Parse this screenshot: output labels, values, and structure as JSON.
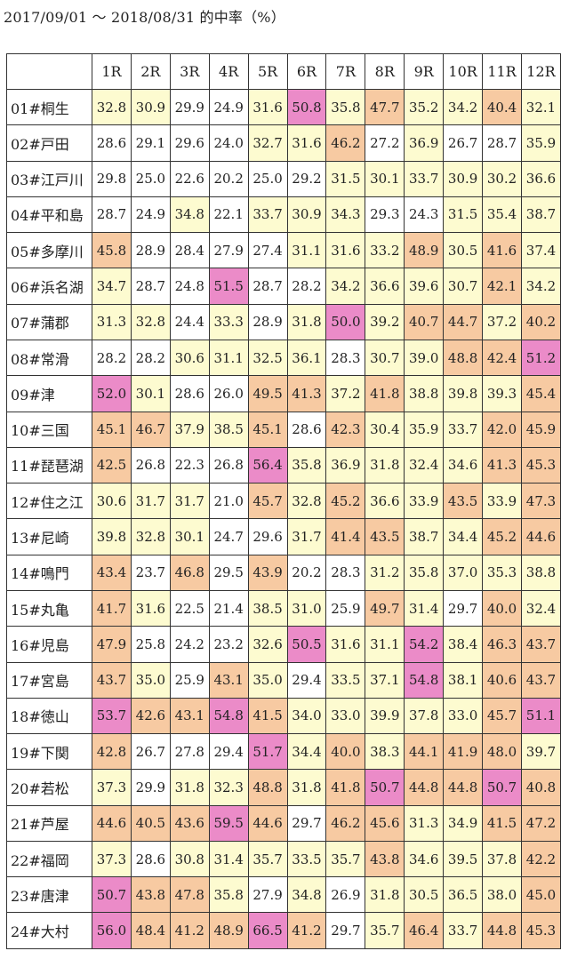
{
  "title": "2017/09/01 〜 2018/08/31 的中率（%）",
  "colors": {
    "white": "#ffffff",
    "yellow": "#fdfbd0",
    "orange": "#f7caa2",
    "pink": "#eb8bc8"
  },
  "headers": [
    "",
    "1R",
    "2R",
    "3R",
    "4R",
    "5R",
    "6R",
    "7R",
    "8R",
    "9R",
    "10R",
    "11R",
    "12R"
  ],
  "rows": [
    {
      "venue": "01#桐生",
      "values": [
        "32.8",
        "30.9",
        "29.9",
        "24.9",
        "31.6",
        "50.8",
        "35.8",
        "47.7",
        "35.2",
        "34.2",
        "40.4",
        "32.1"
      ],
      "shades": [
        "y",
        "y",
        "w",
        "w",
        "y",
        "p",
        "y",
        "o",
        "y",
        "y",
        "o",
        "y"
      ]
    },
    {
      "venue": "02#戸田",
      "values": [
        "28.6",
        "29.1",
        "29.6",
        "24.0",
        "32.7",
        "31.6",
        "46.2",
        "27.2",
        "36.9",
        "26.7",
        "28.7",
        "35.9"
      ],
      "shades": [
        "w",
        "w",
        "w",
        "w",
        "y",
        "y",
        "o",
        "w",
        "y",
        "w",
        "w",
        "y"
      ]
    },
    {
      "venue": "03#江戸川",
      "values": [
        "29.8",
        "25.0",
        "22.6",
        "20.2",
        "25.0",
        "29.2",
        "31.5",
        "30.1",
        "33.7",
        "30.9",
        "30.2",
        "36.6"
      ],
      "shades": [
        "w",
        "w",
        "w",
        "w",
        "w",
        "w",
        "y",
        "y",
        "y",
        "y",
        "y",
        "y"
      ]
    },
    {
      "venue": "04#平和島",
      "values": [
        "28.7",
        "24.9",
        "34.8",
        "22.1",
        "33.7",
        "30.9",
        "34.3",
        "29.3",
        "24.3",
        "31.5",
        "35.4",
        "38.7"
      ],
      "shades": [
        "w",
        "w",
        "y",
        "w",
        "y",
        "y",
        "y",
        "w",
        "w",
        "y",
        "y",
        "y"
      ]
    },
    {
      "venue": "05#多摩川",
      "values": [
        "45.8",
        "28.9",
        "28.4",
        "27.9",
        "27.4",
        "31.1",
        "31.6",
        "33.2",
        "48.9",
        "30.5",
        "41.6",
        "37.4"
      ],
      "shades": [
        "o",
        "w",
        "w",
        "w",
        "w",
        "y",
        "y",
        "y",
        "o",
        "y",
        "o",
        "y"
      ]
    },
    {
      "venue": "06#浜名湖",
      "values": [
        "34.7",
        "28.7",
        "24.8",
        "51.5",
        "28.7",
        "28.2",
        "34.2",
        "36.6",
        "39.6",
        "30.7",
        "42.1",
        "34.2"
      ],
      "shades": [
        "y",
        "w",
        "w",
        "p",
        "w",
        "w",
        "y",
        "y",
        "y",
        "y",
        "o",
        "y"
      ]
    },
    {
      "venue": "07#蒲郡",
      "values": [
        "31.3",
        "32.8",
        "24.4",
        "33.3",
        "28.9",
        "31.8",
        "50.0",
        "39.2",
        "40.7",
        "44.7",
        "37.2",
        "40.2"
      ],
      "shades": [
        "y",
        "y",
        "w",
        "y",
        "w",
        "y",
        "p",
        "y",
        "o",
        "o",
        "y",
        "o"
      ]
    },
    {
      "venue": "08#常滑",
      "values": [
        "28.2",
        "28.2",
        "30.6",
        "31.1",
        "32.5",
        "36.1",
        "28.3",
        "30.7",
        "39.0",
        "48.8",
        "42.4",
        "51.2"
      ],
      "shades": [
        "w",
        "w",
        "y",
        "y",
        "y",
        "y",
        "w",
        "y",
        "y",
        "o",
        "o",
        "p"
      ]
    },
    {
      "venue": "09#津",
      "values": [
        "52.0",
        "30.1",
        "28.6",
        "26.0",
        "49.5",
        "41.3",
        "37.2",
        "41.8",
        "38.8",
        "39.8",
        "39.3",
        "45.4"
      ],
      "shades": [
        "p",
        "y",
        "w",
        "w",
        "o",
        "o",
        "y",
        "o",
        "y",
        "y",
        "y",
        "o"
      ]
    },
    {
      "venue": "10#三国",
      "values": [
        "45.1",
        "46.7",
        "37.9",
        "38.5",
        "45.1",
        "28.6",
        "42.3",
        "30.4",
        "35.9",
        "33.7",
        "42.0",
        "45.9"
      ],
      "shades": [
        "o",
        "o",
        "y",
        "y",
        "o",
        "w",
        "o",
        "y",
        "y",
        "y",
        "o",
        "o"
      ]
    },
    {
      "venue": "11#琵琶湖",
      "values": [
        "42.5",
        "26.8",
        "22.3",
        "26.8",
        "56.4",
        "35.8",
        "36.9",
        "31.8",
        "32.4",
        "34.6",
        "41.3",
        "45.3"
      ],
      "shades": [
        "o",
        "w",
        "w",
        "w",
        "p",
        "y",
        "y",
        "y",
        "y",
        "y",
        "o",
        "o"
      ]
    },
    {
      "venue": "12#住之江",
      "values": [
        "30.6",
        "31.7",
        "31.7",
        "21.0",
        "45.7",
        "32.8",
        "45.2",
        "36.6",
        "33.9",
        "43.5",
        "33.9",
        "47.3"
      ],
      "shades": [
        "y",
        "y",
        "y",
        "w",
        "o",
        "y",
        "o",
        "y",
        "y",
        "o",
        "y",
        "o"
      ]
    },
    {
      "venue": "13#尼崎",
      "values": [
        "39.8",
        "32.8",
        "30.1",
        "24.7",
        "29.6",
        "31.7",
        "41.4",
        "43.5",
        "38.7",
        "34.4",
        "45.2",
        "44.6"
      ],
      "shades": [
        "y",
        "y",
        "y",
        "w",
        "w",
        "y",
        "o",
        "o",
        "y",
        "y",
        "o",
        "o"
      ]
    },
    {
      "venue": "14#鳴門",
      "values": [
        "43.4",
        "23.7",
        "46.8",
        "29.5",
        "43.9",
        "20.2",
        "28.3",
        "31.2",
        "35.8",
        "37.0",
        "35.3",
        "38.8"
      ],
      "shades": [
        "o",
        "w",
        "o",
        "w",
        "o",
        "w",
        "w",
        "y",
        "y",
        "y",
        "y",
        "y"
      ]
    },
    {
      "venue": "15#丸亀",
      "values": [
        "41.7",
        "31.6",
        "22.5",
        "21.4",
        "38.5",
        "31.0",
        "25.9",
        "49.7",
        "31.4",
        "29.7",
        "40.0",
        "32.4"
      ],
      "shades": [
        "o",
        "y",
        "w",
        "w",
        "y",
        "y",
        "w",
        "o",
        "y",
        "w",
        "o",
        "y"
      ]
    },
    {
      "venue": "16#児島",
      "values": [
        "47.9",
        "25.8",
        "24.2",
        "23.2",
        "32.6",
        "50.5",
        "31.6",
        "31.1",
        "54.2",
        "38.4",
        "46.3",
        "43.7"
      ],
      "shades": [
        "o",
        "w",
        "w",
        "w",
        "y",
        "p",
        "y",
        "y",
        "p",
        "y",
        "o",
        "o"
      ]
    },
    {
      "venue": "17#宮島",
      "values": [
        "43.7",
        "35.0",
        "25.9",
        "43.1",
        "35.0",
        "29.4",
        "33.5",
        "37.1",
        "54.8",
        "38.1",
        "40.6",
        "43.7"
      ],
      "shades": [
        "o",
        "y",
        "w",
        "o",
        "y",
        "w",
        "y",
        "y",
        "p",
        "y",
        "o",
        "o"
      ]
    },
    {
      "venue": "18#徳山",
      "values": [
        "53.7",
        "42.6",
        "43.1",
        "54.8",
        "41.5",
        "34.0",
        "33.0",
        "39.9",
        "37.8",
        "33.0",
        "45.7",
        "51.1"
      ],
      "shades": [
        "p",
        "o",
        "o",
        "p",
        "o",
        "y",
        "y",
        "y",
        "y",
        "y",
        "o",
        "p"
      ]
    },
    {
      "venue": "19#下関",
      "values": [
        "42.8",
        "26.7",
        "27.8",
        "29.4",
        "51.7",
        "34.4",
        "40.0",
        "38.3",
        "44.1",
        "41.9",
        "48.0",
        "39.7"
      ],
      "shades": [
        "o",
        "w",
        "w",
        "w",
        "p",
        "y",
        "o",
        "y",
        "o",
        "o",
        "o",
        "y"
      ]
    },
    {
      "venue": "20#若松",
      "values": [
        "37.3",
        "29.9",
        "31.8",
        "32.3",
        "48.8",
        "31.8",
        "41.8",
        "50.7",
        "44.8",
        "44.8",
        "50.7",
        "40.8"
      ],
      "shades": [
        "y",
        "w",
        "y",
        "y",
        "o",
        "y",
        "o",
        "p",
        "o",
        "o",
        "p",
        "o"
      ]
    },
    {
      "venue": "21#芦屋",
      "values": [
        "44.6",
        "40.5",
        "43.6",
        "59.5",
        "44.6",
        "29.7",
        "46.2",
        "45.6",
        "31.3",
        "34.9",
        "41.5",
        "47.2"
      ],
      "shades": [
        "o",
        "o",
        "o",
        "p",
        "o",
        "w",
        "o",
        "o",
        "y",
        "y",
        "o",
        "o"
      ]
    },
    {
      "venue": "22#福岡",
      "values": [
        "37.3",
        "28.6",
        "30.8",
        "31.4",
        "35.7",
        "33.5",
        "35.7",
        "43.8",
        "34.6",
        "39.5",
        "37.8",
        "42.2"
      ],
      "shades": [
        "y",
        "w",
        "y",
        "y",
        "y",
        "y",
        "y",
        "o",
        "y",
        "y",
        "y",
        "o"
      ]
    },
    {
      "venue": "23#唐津",
      "values": [
        "50.7",
        "43.8",
        "47.8",
        "35.8",
        "27.9",
        "34.8",
        "26.9",
        "31.8",
        "30.5",
        "36.5",
        "38.0",
        "45.0"
      ],
      "shades": [
        "p",
        "o",
        "o",
        "y",
        "w",
        "y",
        "w",
        "y",
        "y",
        "y",
        "y",
        "o"
      ]
    },
    {
      "venue": "24#大村",
      "values": [
        "56.0",
        "48.4",
        "41.2",
        "48.9",
        "66.5",
        "41.2",
        "29.7",
        "35.7",
        "46.4",
        "33.7",
        "44.8",
        "45.3"
      ],
      "shades": [
        "p",
        "o",
        "o",
        "o",
        "p",
        "o",
        "w",
        "y",
        "o",
        "y",
        "o",
        "o"
      ]
    }
  ]
}
